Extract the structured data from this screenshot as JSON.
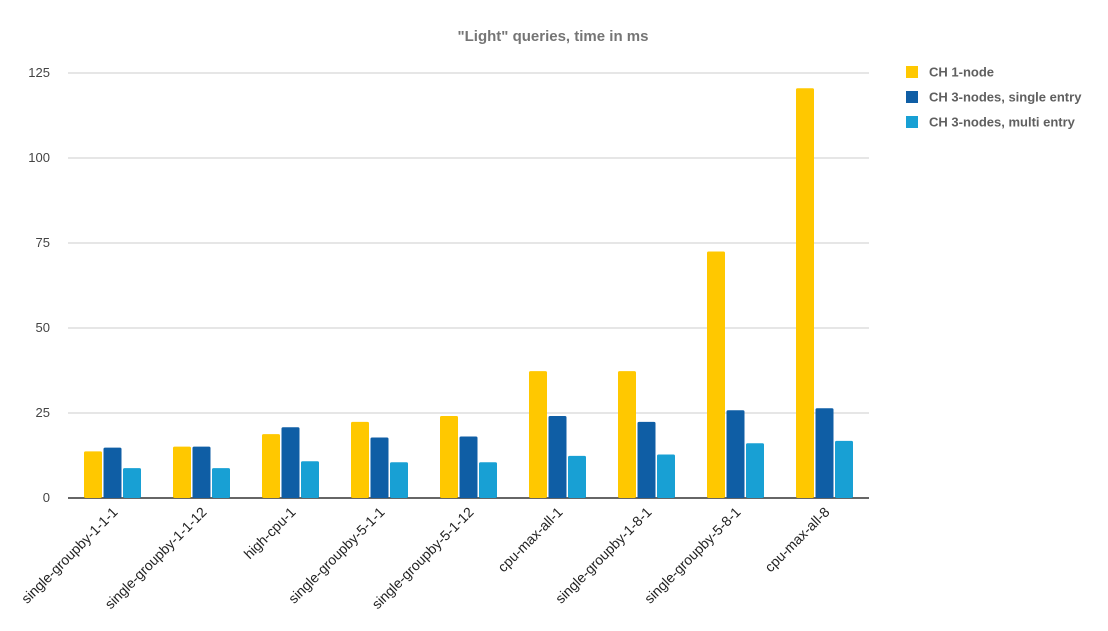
{
  "chart_data": {
    "type": "bar",
    "title": "\"Light\" queries, time in ms",
    "xlabel": "",
    "ylabel": "",
    "ylim": [
      0,
      125
    ],
    "yticks": [
      0,
      25,
      50,
      75,
      100,
      125
    ],
    "grid": true,
    "legend_position": "right",
    "categories": [
      "single-groupby-1-1-1",
      "single-groupby-1-1-12",
      "high-cpu-1",
      "single-groupby-5-1-1",
      "single-groupby-5-1-12",
      "cpu-max-all-1",
      "single-groupby-1-8-1",
      "single-groupby-5-8-1",
      "cpu-max-all-8"
    ],
    "series": [
      {
        "name": "CH 1-node",
        "color": "#ffc800",
        "values": [
          13.7,
          15.1,
          18.8,
          22.4,
          24.1,
          37.3,
          37.3,
          72.5,
          120.5
        ]
      },
      {
        "name": "CH 3-nodes, single entry",
        "color": "#0f5ea5",
        "values": [
          14.8,
          15.1,
          20.8,
          17.8,
          18.1,
          24.1,
          22.4,
          25.8,
          26.4
        ]
      },
      {
        "name": "CH 3-nodes, multi entry",
        "color": "#18a0d4",
        "values": [
          8.8,
          8.8,
          10.8,
          10.5,
          10.5,
          12.4,
          12.8,
          16.1,
          16.8
        ]
      }
    ]
  }
}
